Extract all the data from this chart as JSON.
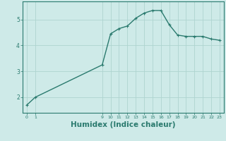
{
  "x": [
    0,
    1,
    9,
    10,
    11,
    12,
    13,
    14,
    15,
    16,
    17,
    18,
    19,
    20,
    21,
    22,
    23
  ],
  "y": [
    1.7,
    2.0,
    3.25,
    4.45,
    4.65,
    4.75,
    5.05,
    5.25,
    5.35,
    5.35,
    4.8,
    4.4,
    4.35,
    4.35,
    4.35,
    4.25,
    4.2
  ],
  "line_color": "#2a7a6e",
  "marker": "+",
  "marker_size": 3,
  "background_color": "#ceeae8",
  "grid_color": "#aed4d0",
  "xlabel": "Humidex (Indice chaleur)",
  "xlabel_fontsize": 7.5,
  "tick_color": "#2a7a6e",
  "ylim": [
    1.4,
    5.7
  ],
  "yticks": [
    2,
    3,
    4,
    5
  ],
  "xticks": [
    0,
    1,
    9,
    10,
    11,
    12,
    13,
    14,
    15,
    16,
    17,
    18,
    19,
    20,
    21,
    22,
    23
  ],
  "line_width": 1.0
}
